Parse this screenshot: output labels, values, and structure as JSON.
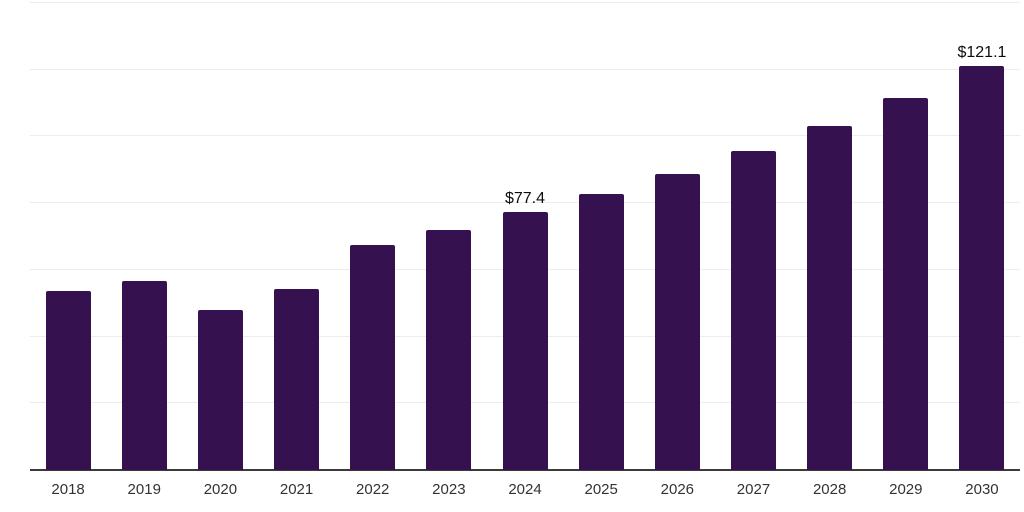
{
  "chart_data": {
    "type": "bar",
    "title": "",
    "xlabel": "",
    "ylabel": "",
    "categories": [
      "2018",
      "2019",
      "2020",
      "2021",
      "2022",
      "2023",
      "2024",
      "2025",
      "2026",
      "2027",
      "2028",
      "2029",
      "2030"
    ],
    "values": [
      53.6,
      56.7,
      47.9,
      54.3,
      67.6,
      72.1,
      77.4,
      82.7,
      88.8,
      95.5,
      103.2,
      111.4,
      121.1
    ],
    "value_labels": [
      "",
      "",
      "",
      "",
      "",
      "",
      "$77.4",
      "",
      "",
      "",
      "",
      "",
      "$121.1"
    ],
    "ylim": [
      0,
      140
    ],
    "gridline_step": 20,
    "grid": "horizontal-only",
    "y_tick_labels_shown": false,
    "legend": "none",
    "colors": {
      "bar": "#351150",
      "gridline": "#ededed",
      "axis_line": "#3b3b3b",
      "tick_label": "#333333",
      "value_label": "#0d0d0d",
      "background": "#ffffff"
    }
  }
}
